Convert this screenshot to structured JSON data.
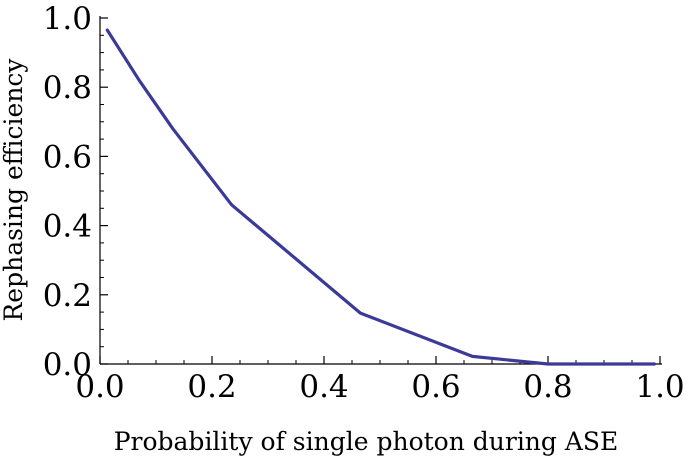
{
  "chart_data": {
    "type": "line",
    "title": "",
    "xlabel": "Probability of single photon during ASE",
    "ylabel": "Rephasing efficiency",
    "xlim": [
      0,
      1
    ],
    "ylim": [
      0,
      1
    ],
    "x_ticks": [
      "0.0",
      "0.2",
      "0.4",
      "0.6",
      "0.8",
      "1.0"
    ],
    "y_ticks": [
      "0.0",
      "0.2",
      "0.4",
      "0.6",
      "0.8",
      "1.0"
    ],
    "series": [
      {
        "name": "Rephasing efficiency",
        "color": "#3b3a96",
        "x": [
          0.013,
          0.07,
          0.13,
          0.235,
          0.465,
          0.665,
          0.8,
          0.99
        ],
        "y": [
          0.965,
          0.82,
          0.68,
          0.46,
          0.147,
          0.022,
          0.0,
          0.0
        ]
      }
    ]
  }
}
